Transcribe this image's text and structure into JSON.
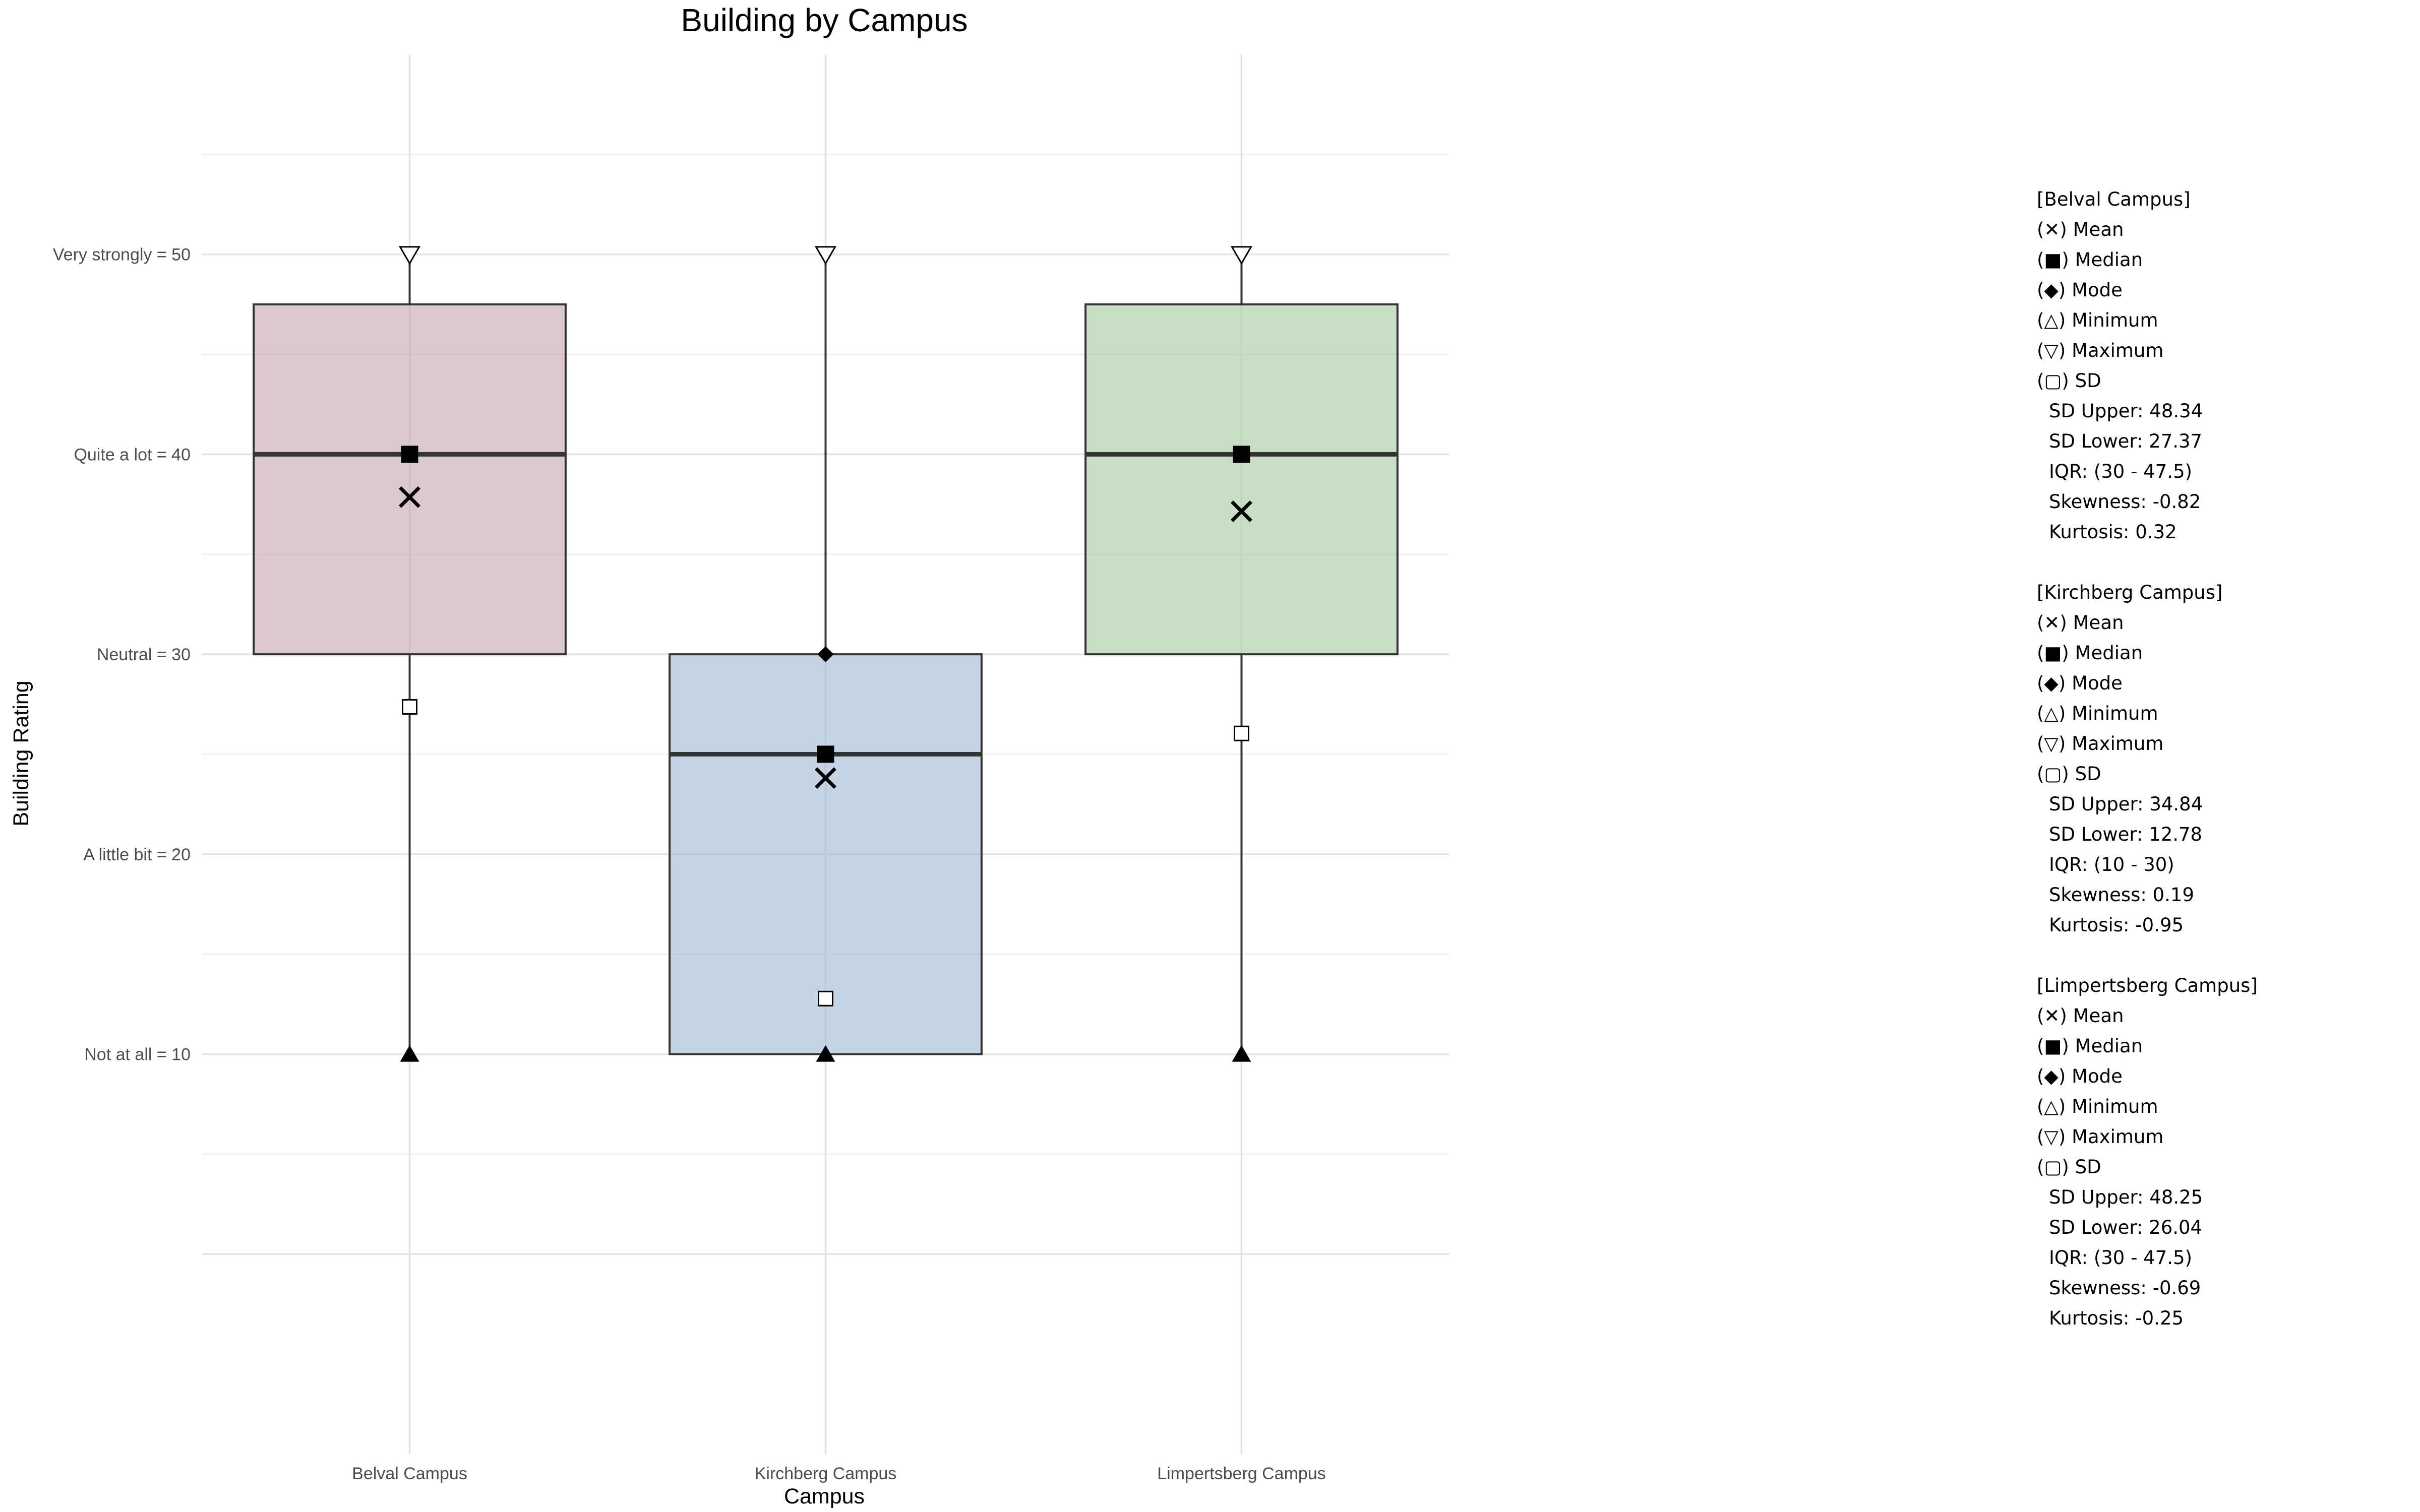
{
  "chart_data": {
    "type": "box",
    "title": "Building by Campus",
    "xlabel": "Campus",
    "ylabel": "Building Rating",
    "ylim": [
      -10,
      60
    ],
    "y_ticks": [
      {
        "value": 10,
        "label": "Not at all = 10"
      },
      {
        "value": 20,
        "label": "A little bit = 20"
      },
      {
        "value": 30,
        "label": "Neutral = 30"
      },
      {
        "value": 40,
        "label": "Quite a lot = 40"
      },
      {
        "value": 50,
        "label": "Very strongly = 50"
      }
    ],
    "grid": true,
    "categories": [
      "Belval Campus",
      "Kirchberg Campus",
      "Limpertsberg Campus"
    ],
    "boxes": [
      {
        "category": "Belval Campus",
        "color": "#c9a9b6",
        "q1": 30,
        "median": 40,
        "q3": 47.5,
        "whisker_low": 10,
        "whisker_high": 50,
        "mean": 37.86,
        "mode": null,
        "min": 10,
        "max": 50,
        "sd_lower": 27.37,
        "sd_upper": 48.34
      },
      {
        "category": "Kirchberg Campus",
        "color": "#a8bbd9",
        "q1": 10,
        "median": 25,
        "q3": 30,
        "whisker_low": 10,
        "whisker_high": 50,
        "mean": 23.81,
        "mode": 30,
        "min": 10,
        "max": 50,
        "sd_lower": 12.78,
        "sd_upper": 34.84
      },
      {
        "category": "Limpertsberg Campus",
        "color": "#aecba6",
        "q1": 30,
        "median": 40,
        "q3": 47.5,
        "whisker_low": 10,
        "whisker_high": 50,
        "mean": 37.15,
        "mode": null,
        "min": 10,
        "max": 50,
        "sd_lower": 26.04,
        "sd_upper": 48.25
      }
    ]
  },
  "stats_panel": [
    {
      "header": "[Belval Campus]",
      "legend": [
        "(✕) Mean",
        "(■) Median",
        "(◆) Mode",
        "(△) Minimum",
        "(▽) Maximum",
        "(▢) SD"
      ],
      "values": [
        "SD Upper: 48.34",
        "SD Lower: 27.37",
        "IQR: (30 - 47.5)",
        "Skewness: -0.82",
        "Kurtosis: 0.32"
      ]
    },
    {
      "header": "[Kirchberg Campus]",
      "legend": [
        "(✕) Mean",
        "(■) Median",
        "(◆) Mode",
        "(△) Minimum",
        "(▽) Maximum",
        "(▢) SD"
      ],
      "values": [
        "SD Upper: 34.84",
        "SD Lower: 12.78",
        "IQR: (10 - 30)",
        "Skewness: 0.19",
        "Kurtosis: -0.95"
      ]
    },
    {
      "header": "[Limpertsberg Campus]",
      "legend": [
        "(✕) Mean",
        "(■) Median",
        "(◆) Mode",
        "(△) Minimum",
        "(▽) Maximum",
        "(▢) SD"
      ],
      "values": [
        "SD Upper: 48.25",
        "SD Lower: 26.04",
        "IQR: (30 - 47.5)",
        "Skewness: -0.69",
        "Kurtosis: -0.25"
      ]
    }
  ]
}
